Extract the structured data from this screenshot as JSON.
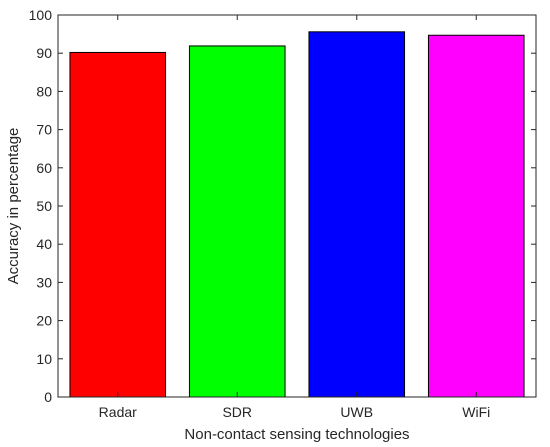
{
  "chart_data": {
    "type": "bar",
    "title": "",
    "xlabel": "Non-contact sensing technologies",
    "ylabel": "Accuracy in percentage",
    "categories": [
      "Radar",
      "SDR",
      "UWB",
      "WiFi"
    ],
    "values": [
      90.2,
      91.9,
      95.6,
      94.7
    ],
    "colors": [
      "#ff0000",
      "#00ff00",
      "#0000ff",
      "#ff00ff"
    ],
    "ylim": [
      0,
      100
    ],
    "yticks": [
      0,
      10,
      20,
      30,
      40,
      50,
      60,
      70,
      80,
      90,
      100
    ],
    "grid": false,
    "legend": "none"
  }
}
